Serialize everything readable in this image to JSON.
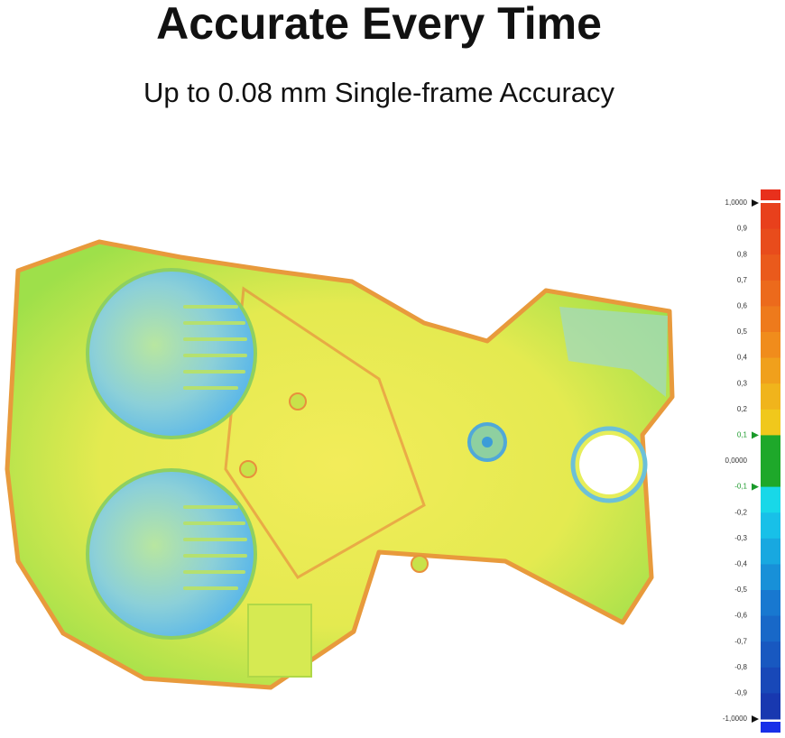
{
  "header": {
    "title": "Accurate Every Time",
    "subtitle": "Up to 0.08 mm Single-frame Accuracy"
  },
  "scale": {
    "labels": [
      "1,0000",
      "0,9",
      "0,8",
      "0,7",
      "0,6",
      "0,5",
      "0,4",
      "0,3",
      "0,2",
      "0,1",
      "0,0000",
      "-0,1",
      "-0,2",
      "-0,3",
      "-0,4",
      "-0,5",
      "-0,6",
      "-0,7",
      "-0,8",
      "-0,9",
      "-1,0000"
    ]
  }
}
